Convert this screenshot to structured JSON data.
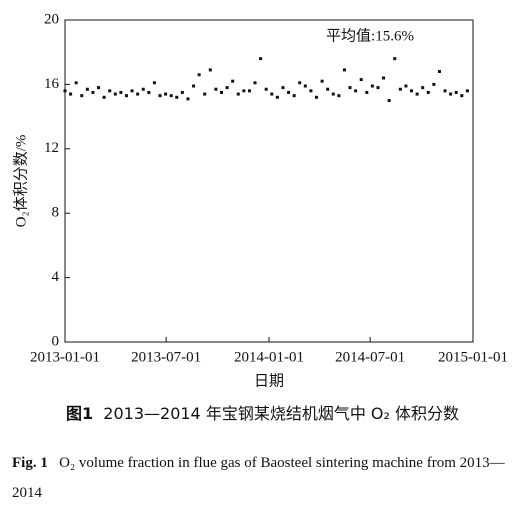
{
  "chart_data": {
    "type": "scatter",
    "ylabel": "O₂体积分数/%",
    "xlabel": "日期",
    "annotation": "平均值:15.6%",
    "xlim": [
      "2013-01-01",
      "2015-01-01"
    ],
    "xticks": [
      "2013-01-01",
      "2013-07-01",
      "2014-01-01",
      "2014-07-01",
      "2015-01-01"
    ],
    "ylim": [
      0,
      20
    ],
    "yticks": [
      0,
      4,
      8,
      12,
      16,
      20
    ],
    "color": "#111111",
    "x": [
      "2013-01-01",
      "2013-01-11",
      "2013-01-21",
      "2013-01-31",
      "2013-02-10",
      "2013-02-20",
      "2013-03-02",
      "2013-03-12",
      "2013-03-22",
      "2013-04-01",
      "2013-04-11",
      "2013-04-21",
      "2013-05-01",
      "2013-05-11",
      "2013-05-21",
      "2013-05-31",
      "2013-06-10",
      "2013-06-20",
      "2013-06-30",
      "2013-07-10",
      "2013-07-20",
      "2013-07-30",
      "2013-08-09",
      "2013-08-19",
      "2013-08-29",
      "2013-09-08",
      "2013-09-18",
      "2013-09-28",
      "2013-10-08",
      "2013-10-18",
      "2013-10-28",
      "2013-11-07",
      "2013-11-17",
      "2013-11-27",
      "2013-12-07",
      "2013-12-17",
      "2013-12-27",
      "2014-01-06",
      "2014-01-16",
      "2014-01-26",
      "2014-02-05",
      "2014-02-15",
      "2014-02-25",
      "2014-03-07",
      "2014-03-17",
      "2014-03-27",
      "2014-04-06",
      "2014-04-16",
      "2014-04-26",
      "2014-05-06",
      "2014-05-16",
      "2014-05-26",
      "2014-06-05",
      "2014-06-15",
      "2014-06-25",
      "2014-07-05",
      "2014-07-15",
      "2014-07-25",
      "2014-08-04",
      "2014-08-14",
      "2014-08-24",
      "2014-09-03",
      "2014-09-13",
      "2014-09-23",
      "2014-10-03",
      "2014-10-13",
      "2014-10-23",
      "2014-11-02",
      "2014-11-12",
      "2014-11-22",
      "2014-12-02",
      "2014-12-12",
      "2014-12-22"
    ],
    "values": [
      15.6,
      15.4,
      16.1,
      15.3,
      15.7,
      15.5,
      15.8,
      15.2,
      15.6,
      15.4,
      15.5,
      15.3,
      15.6,
      15.4,
      15.7,
      15.5,
      16.1,
      15.3,
      15.4,
      15.3,
      15.2,
      15.5,
      15.1,
      15.9,
      16.6,
      15.4,
      16.9,
      15.7,
      15.5,
      15.8,
      16.2,
      15.4,
      15.6,
      15.6,
      16.1,
      17.6,
      15.7,
      15.4,
      15.2,
      15.8,
      15.5,
      15.3,
      16.1,
      15.9,
      15.6,
      15.2,
      16.2,
      15.7,
      15.4,
      15.3,
      16.9,
      15.8,
      15.6,
      16.3,
      15.5,
      15.9,
      15.8,
      16.4,
      15.0,
      17.6,
      15.7,
      15.9,
      15.6,
      15.4,
      15.8,
      15.5,
      16.0,
      16.8,
      15.6,
      15.4,
      15.5,
      15.3,
      15.6
    ]
  },
  "caption": {
    "cn_label": "图1",
    "cn_text": "2013—2014 年宝钢某烧结机烟气中 O₂ 体积分数",
    "en_label": "Fig. 1",
    "en_text": "O₂ volume fraction in flue gas of Baosteel sintering machine from 2013—2014"
  }
}
